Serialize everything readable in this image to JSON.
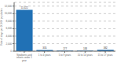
{
  "chart_data": {
    "type": "bar",
    "categories": [
      "Newborns and\ninfants under 1\nyear",
      "1 to 4 years",
      "5 to 9 years",
      "10 to 14 years",
      "15 to 17 years"
    ],
    "values": [
      11022,
      335,
      177,
      183,
      382
    ],
    "value_labels": [
      "11,022",
      "335",
      "177",
      "183",
      "382"
    ],
    "data_labels": true,
    "color": "#2171b5",
    "ylabel": "Rate of stays per 10,000 population",
    "ylim": [
      0,
      13000
    ],
    "yticks": [
      0,
      {
        "value": 2000,
        "label": "2,000"
      },
      {
        "value": 4000,
        "label": "4,000"
      },
      {
        "value": 6000,
        "label": "6,000"
      },
      {
        "value": 8000,
        "label": "8,000"
      },
      {
        "value": 10000,
        "label": "10,000"
      },
      {
        "value": 12000,
        "label": "12,000"
      }
    ],
    "grid": true
  }
}
